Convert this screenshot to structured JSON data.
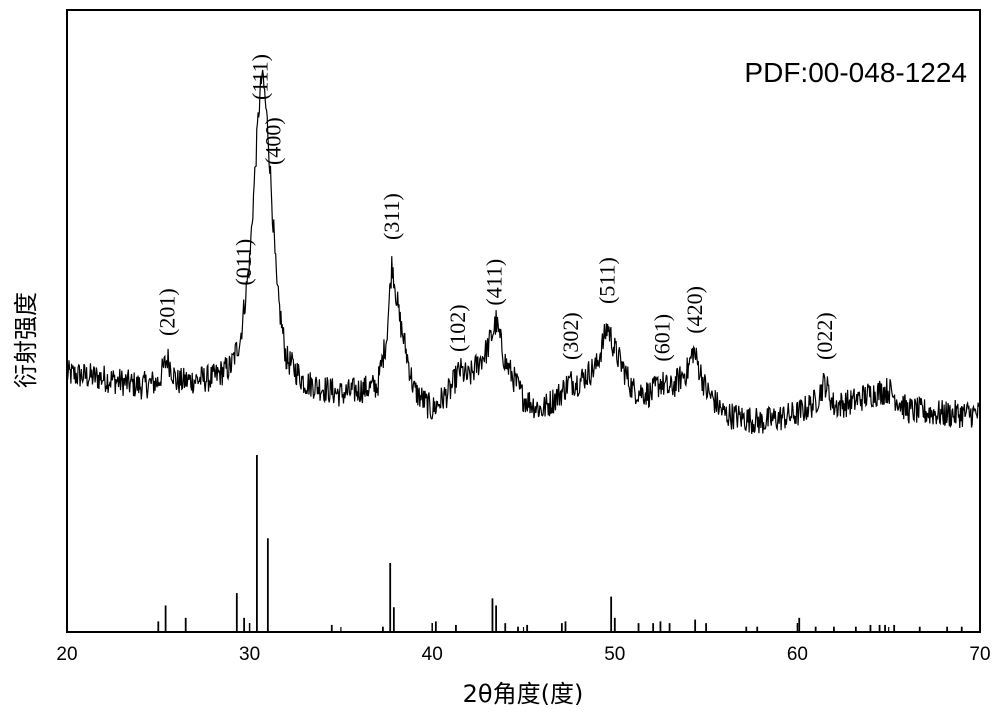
{
  "chart_data": {
    "type": "line",
    "pdf_card": "PDF:00-048-1224",
    "xlabel": "2θ角度(度)",
    "ylabel": "衍射强度",
    "xlim": [
      20,
      70
    ],
    "x_ticks": [
      "20",
      "30",
      "40",
      "50",
      "60",
      "70"
    ],
    "x_tick_values": [
      20,
      30,
      40,
      50,
      60,
      70
    ],
    "grid": false,
    "pattern_series": {
      "name": "",
      "baseline_intensity": 0.22,
      "noise_amplitude": 0.035,
      "points": [
        [
          20,
          0.24
        ],
        [
          22,
          0.23
        ],
        [
          24,
          0.21
        ],
        [
          25,
          0.22
        ],
        [
          25.5,
          0.28
        ],
        [
          26,
          0.22
        ],
        [
          28,
          0.23
        ],
        [
          29,
          0.26
        ],
        [
          29.5,
          0.33
        ],
        [
          30,
          0.52
        ],
        [
          30.5,
          0.9
        ],
        [
          30.7,
          1.0
        ],
        [
          31,
          0.85
        ],
        [
          31.5,
          0.45
        ],
        [
          32,
          0.28
        ],
        [
          33,
          0.22
        ],
        [
          35,
          0.19
        ],
        [
          37,
          0.21
        ],
        [
          37.5,
          0.33
        ],
        [
          37.8,
          0.52
        ],
        [
          38.2,
          0.38
        ],
        [
          39,
          0.2
        ],
        [
          40,
          0.15
        ],
        [
          41,
          0.2
        ],
        [
          41.5,
          0.25
        ],
        [
          42,
          0.23
        ],
        [
          43,
          0.3
        ],
        [
          43.5,
          0.37
        ],
        [
          44,
          0.27
        ],
        [
          45,
          0.18
        ],
        [
          46,
          0.15
        ],
        [
          47,
          0.19
        ],
        [
          47.5,
          0.22
        ],
        [
          48,
          0.22
        ],
        [
          49,
          0.26
        ],
        [
          49.6,
          0.36
        ],
        [
          50,
          0.3
        ],
        [
          51,
          0.2
        ],
        [
          52,
          0.19
        ],
        [
          52.5,
          0.22
        ],
        [
          53,
          0.2
        ],
        [
          54,
          0.25
        ],
        [
          54.3,
          0.3
        ],
        [
          55,
          0.2
        ],
        [
          56,
          0.14
        ],
        [
          57,
          0.13
        ],
        [
          58,
          0.12
        ],
        [
          60,
          0.14
        ],
        [
          61,
          0.17
        ],
        [
          61.5,
          0.22
        ],
        [
          62,
          0.16
        ],
        [
          63,
          0.17
        ],
        [
          64,
          0.19
        ],
        [
          65,
          0.2
        ],
        [
          66,
          0.15
        ],
        [
          68,
          0.14
        ],
        [
          70,
          0.14
        ]
      ]
    },
    "peak_labels": [
      {
        "text": "(201)",
        "x": 25.5
      },
      {
        "text": "(011)",
        "x": 29.7
      },
      {
        "text": "(111)",
        "x": 30.6
      },
      {
        "text": "(400)",
        "x": 31.3
      },
      {
        "text": "(311)",
        "x": 37.8
      },
      {
        "text": "(102)",
        "x": 41.4
      },
      {
        "text": "(411)",
        "x": 43.4
      },
      {
        "text": "(302)",
        "x": 47.6
      },
      {
        "text": "(511)",
        "x": 49.6
      },
      {
        "text": "(601)",
        "x": 52.6
      },
      {
        "text": "(420)",
        "x": 54.4
      },
      {
        "text": "(022)",
        "x": 61.5
      }
    ],
    "reference_lines": {
      "positions": [
        25.0,
        25.4,
        26.5,
        29.3,
        29.7,
        30.4,
        31.0,
        34.5,
        37.3,
        37.7,
        37.9,
        40.2,
        41.3,
        43.3,
        43.5,
        44.0,
        44.7,
        45.2,
        47.1,
        47.3,
        49.8,
        50.0,
        51.3,
        52.1,
        52.5,
        53.0,
        54.4,
        55.0,
        57.2,
        57.8,
        60.1,
        61.0,
        62.0,
        63.2,
        64.0,
        64.5,
        64.8,
        65.3,
        66.7,
        68.2,
        69.0
      ],
      "intensities": [
        0.06,
        0.15,
        0.08,
        0.22,
        0.08,
        1.0,
        0.53,
        0.04,
        0.03,
        0.39,
        0.14,
        0.06,
        0.04,
        0.19,
        0.15,
        0.05,
        0.03,
        0.04,
        0.05,
        0.06,
        0.2,
        0.08,
        0.05,
        0.05,
        0.06,
        0.05,
        0.07,
        0.05,
        0.03,
        0.03,
        0.08,
        0.03,
        0.03,
        0.03,
        0.04,
        0.04,
        0.04,
        0.04,
        0.03,
        0.03,
        0.03
      ]
    }
  }
}
